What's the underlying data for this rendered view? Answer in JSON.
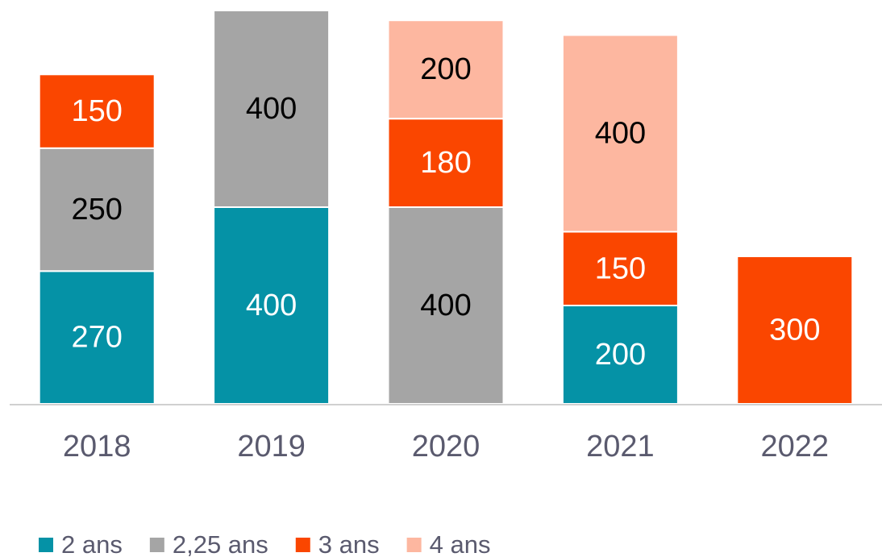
{
  "chart_data": {
    "type": "bar",
    "stacked": true,
    "categories": [
      "2018",
      "2019",
      "2020",
      "2021",
      "2022"
    ],
    "series": [
      {
        "name": "2 ans",
        "color": "#0592a6",
        "values": [
          270,
          400,
          null,
          200,
          null
        ]
      },
      {
        "name": "2,25 ans",
        "color": "#a5a5a5",
        "values": [
          250,
          400,
          400,
          null,
          null
        ]
      },
      {
        "name": "3 ans",
        "color": "#fa4600",
        "values": [
          150,
          null,
          180,
          150,
          300
        ]
      },
      {
        "name": "4 ans",
        "color": "#fdb7a0",
        "values": [
          null,
          null,
          200,
          400,
          null
        ]
      }
    ],
    "ylim": [
      0,
      800
    ],
    "legend": "bottom-left"
  }
}
